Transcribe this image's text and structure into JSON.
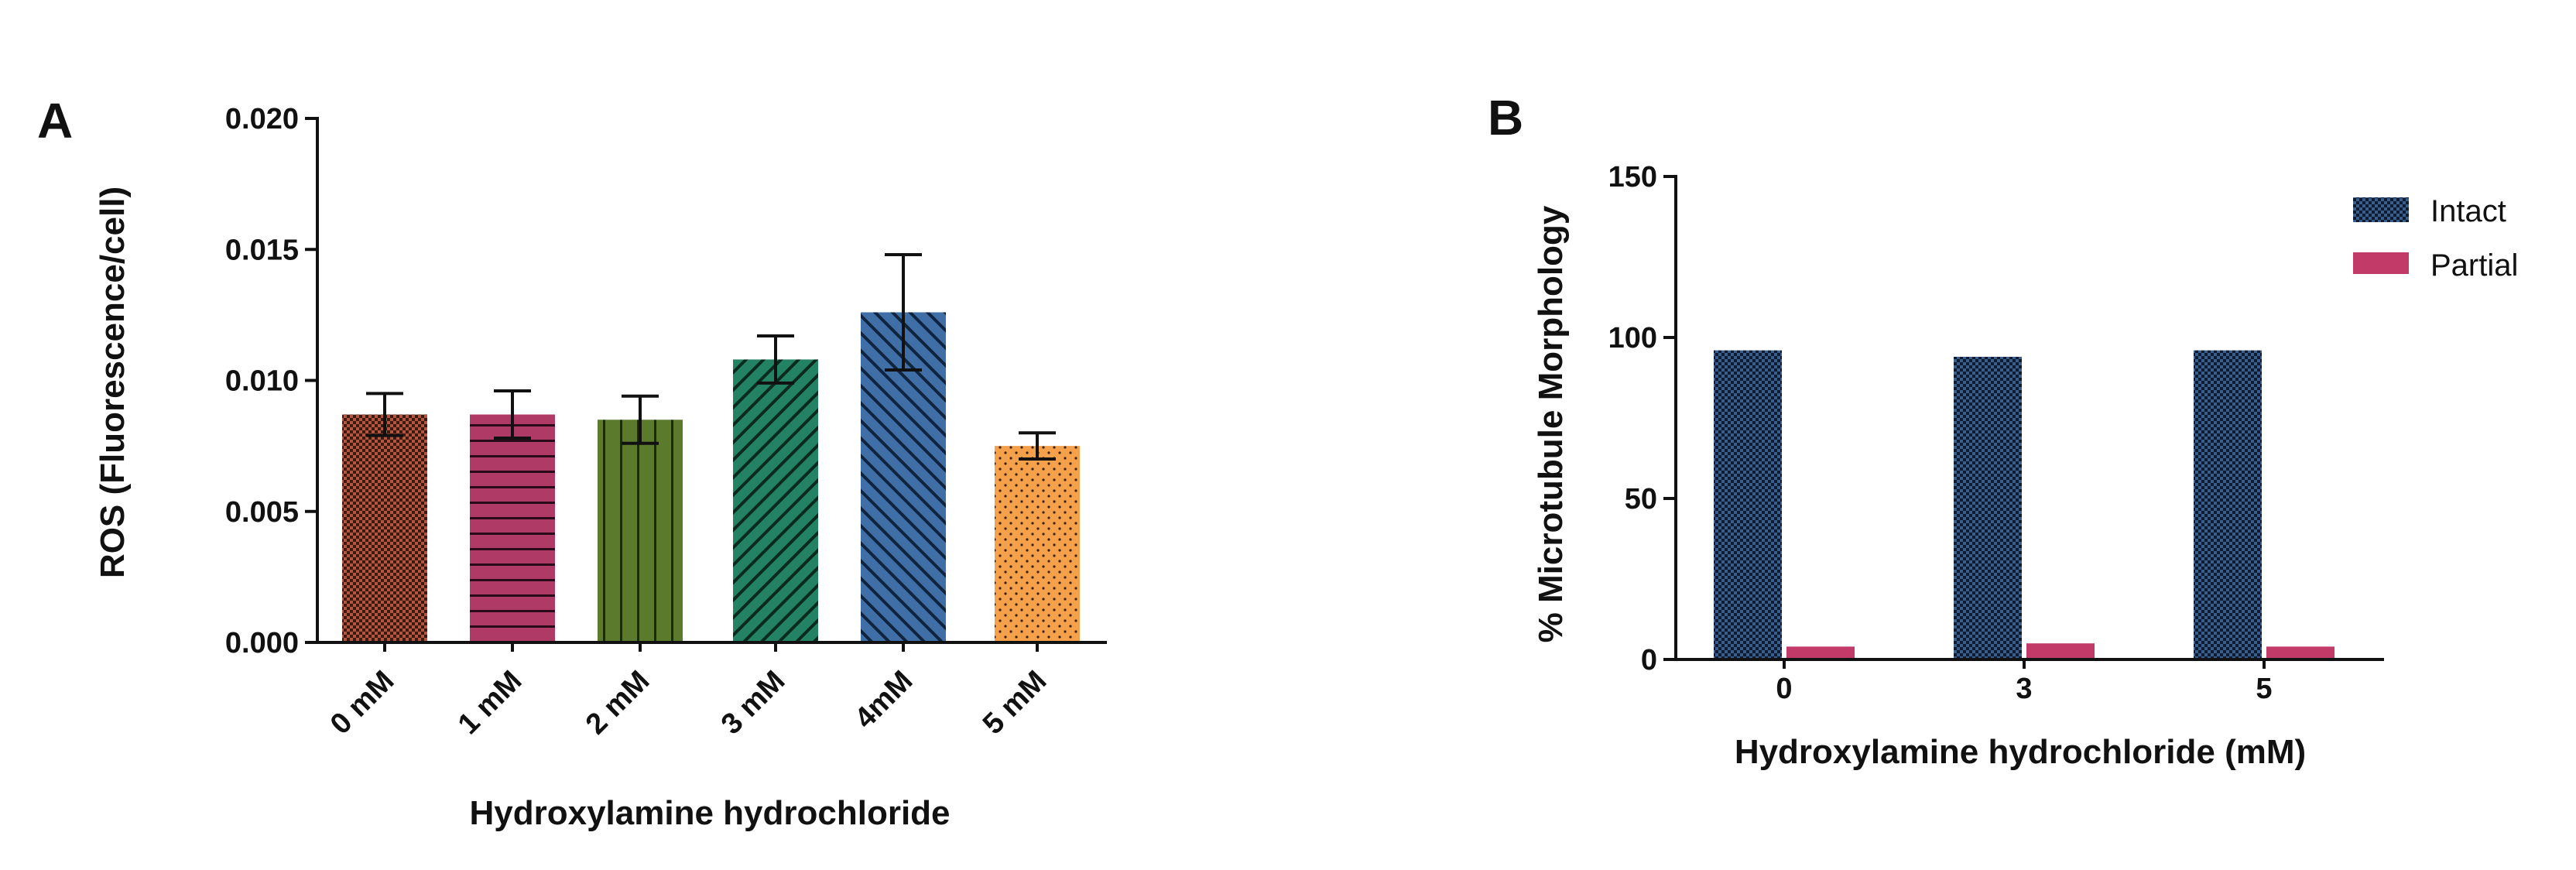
{
  "chart_data": [
    {
      "panel": "A",
      "type": "bar",
      "title": "",
      "xlabel": "Hydroxylamine hydrochloride",
      "ylabel": "ROS (Fluorescence/cell)",
      "ylim": [
        0,
        0.02
      ],
      "yticks": [
        0.0,
        0.005,
        0.01,
        0.015,
        0.02
      ],
      "ytick_labels": [
        "0.000",
        "0.005",
        "0.010",
        "0.015",
        "0.020"
      ],
      "categories": [
        "0 mM",
        "1 mM",
        "2 mM",
        "3 mM",
        "4mM",
        "5 mM"
      ],
      "values": [
        0.0087,
        0.0087,
        0.0085,
        0.0108,
        0.0126,
        0.0075
      ],
      "errors": [
        0.0008,
        0.0009,
        0.0009,
        0.0009,
        0.0022,
        0.0005
      ],
      "colors": [
        "#b5573f",
        "#b03a66",
        "#5b7a2c",
        "#238263",
        "#3f6fa6",
        "#f5a04a"
      ],
      "grid": false
    },
    {
      "panel": "B",
      "type": "bar",
      "title": "",
      "xlabel": "Hydroxylamine hydrochloride (mM)",
      "ylabel": "% Microtubule Morphology",
      "ylim": [
        0,
        150
      ],
      "yticks": [
        0,
        50,
        100,
        150
      ],
      "ytick_labels": [
        "0",
        "50",
        "100",
        "150"
      ],
      "categories": [
        "0",
        "3",
        "5"
      ],
      "series": [
        {
          "name": "Intact",
          "values": [
            96,
            94,
            96
          ],
          "color": "#1e3556"
        },
        {
          "name": "Partial",
          "values": [
            4,
            5,
            4
          ],
          "color": "#c23a68"
        }
      ],
      "legend_position": "top-right",
      "grid": false
    }
  ]
}
